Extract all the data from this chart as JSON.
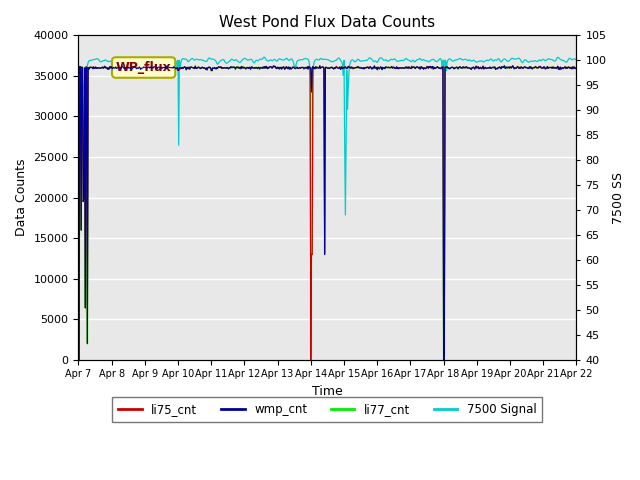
{
  "title": "West Pond Flux Data Counts",
  "xlabel": "Time",
  "ylabel_left": "Data Counts",
  "ylabel_right": "7500 SS",
  "ylim_left": [
    0,
    40000
  ],
  "ylim_right": [
    40,
    105
  ],
  "yticks_left": [
    0,
    5000,
    10000,
    15000,
    20000,
    25000,
    30000,
    35000,
    40000
  ],
  "yticks_right": [
    40,
    45,
    50,
    55,
    60,
    65,
    70,
    75,
    80,
    85,
    90,
    95,
    100,
    105
  ],
  "background_color": "#e8e8e8",
  "figure_background": "#ffffff",
  "annotation_text": "WP_flux",
  "colors": {
    "li75_cnt": "#cc0000",
    "wmp_cnt": "#000099",
    "li77_cnt": "#00ee00",
    "signal7500": "#00cccc"
  },
  "legend_labels": [
    "li75_cnt",
    "wmp_cnt",
    "li77_cnt",
    "7500 Signal"
  ],
  "xtick_labels": [
    "Apr 7",
    "Apr 8",
    "Apr 9",
    "Apr 10",
    "Apr 11",
    "Apr 12",
    "Apr 13",
    "Apr 14",
    "Apr 15",
    "Apr 16",
    "Apr 17",
    "Apr 18",
    "Apr 19",
    "Apr 20",
    "Apr 21",
    "Apr 22"
  ]
}
